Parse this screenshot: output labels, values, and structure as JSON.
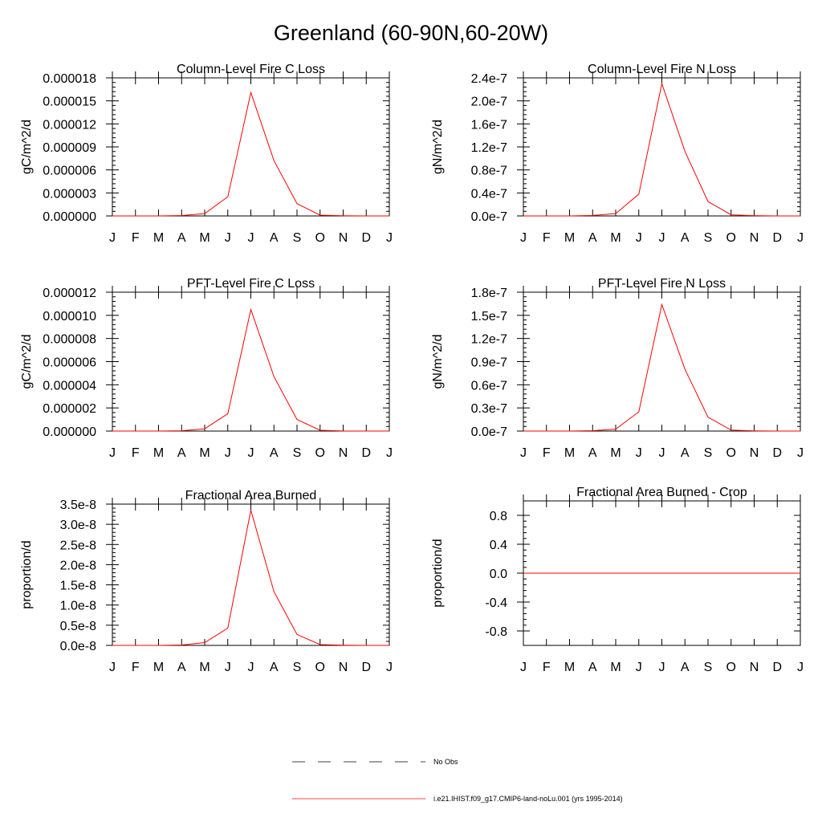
{
  "page_title": "Greenland (60-90N,60-20W)",
  "months": [
    "J",
    "F",
    "M",
    "A",
    "M",
    "J",
    "J",
    "A",
    "S",
    "O",
    "N",
    "D",
    "J"
  ],
  "legend": {
    "items": [
      {
        "label": "No Obs",
        "color": "#000000",
        "style": "dashed"
      },
      {
        "label": "i.e21.IHIST.f09_g17.CMIP6-land-noLu.001 (yrs 1995-2014)",
        "color": "#ff0000",
        "style": "solid"
      }
    ]
  },
  "chart_data": [
    {
      "type": "line",
      "title": "Column-Level Fire C Loss",
      "ylabel": "gC/m^2/d",
      "ylim": [
        0,
        1.8e-05
      ],
      "yticks": [
        0,
        3e-06,
        6e-06,
        9e-06,
        1.2e-05,
        1.5e-05,
        1.8e-05
      ],
      "ytick_labels": [
        "0.000000",
        "0.000003",
        "0.000006",
        "0.000009",
        "0.000012",
        "0.000015",
        "0.000018"
      ],
      "series": [
        {
          "color": "#ff0000",
          "values": [
            0,
            0,
            0,
            5e-08,
            3e-07,
            2.5e-06,
            1.61e-05,
            7.2e-06,
            1.6e-06,
            1e-07,
            2e-08,
            0,
            0
          ]
        }
      ]
    },
    {
      "type": "line",
      "title": "Column-Level Fire N Loss",
      "ylabel": "gN/m^2/d",
      "ylim": [
        0,
        2.4e-07
      ],
      "yticks": [
        0,
        4e-08,
        8e-08,
        1.2e-07,
        1.6e-07,
        2e-07,
        2.4e-07
      ],
      "ytick_labels": [
        "0.0e-7",
        "0.4e-7",
        "0.8e-7",
        "1.2e-7",
        "1.6e-7",
        "2.0e-7",
        "2.4e-7"
      ],
      "series": [
        {
          "color": "#ff0000",
          "values": [
            0,
            0,
            0,
            8e-10,
            4e-09,
            3.8e-08,
            2.3e-07,
            1.12e-07,
            2.5e-08,
            2e-09,
            5e-10,
            0,
            0
          ]
        }
      ]
    },
    {
      "type": "line",
      "title": "PFT-Level Fire C Loss",
      "ylabel": "gC/m^2/d",
      "ylim": [
        0,
        1.2e-05
      ],
      "yticks": [
        0,
        2e-06,
        4e-06,
        6e-06,
        8e-06,
        1e-05,
        1.2e-05
      ],
      "ytick_labels": [
        "0.000000",
        "0.000002",
        "0.000004",
        "0.000006",
        "0.000008",
        "0.000010",
        "0.000012"
      ],
      "series": [
        {
          "color": "#ff0000",
          "values": [
            0,
            0,
            0,
            3e-08,
            2e-07,
            1.5e-06,
            1.05e-05,
            4.7e-06,
            1e-06,
            7e-08,
            1e-08,
            0,
            0
          ]
        }
      ]
    },
    {
      "type": "line",
      "title": "PFT-Level Fire N Loss",
      "ylabel": "gN/m^2/d",
      "ylim": [
        0,
        1.8e-07
      ],
      "yticks": [
        0,
        3e-08,
        6e-08,
        9e-08,
        1.2e-07,
        1.5e-07,
        1.8e-07
      ],
      "ytick_labels": [
        "0.0e-7",
        "0.3e-7",
        "0.6e-7",
        "0.9e-7",
        "1.2e-7",
        "1.5e-7",
        "1.8e-7"
      ],
      "series": [
        {
          "color": "#ff0000",
          "values": [
            0,
            0,
            0,
            5e-10,
            2.5e-09,
            2.5e-08,
            1.64e-07,
            8e-08,
            1.8e-08,
            1.2e-09,
            3e-10,
            0,
            0
          ]
        }
      ]
    },
    {
      "type": "line",
      "title": "Fractional Area Burned",
      "ylabel": "proportion/d",
      "ylim": [
        0,
        3.5e-08
      ],
      "yticks": [
        0,
        5e-09,
        1e-08,
        1.5e-08,
        2e-08,
        2.5e-08,
        3e-08,
        3.5e-08
      ],
      "ytick_labels": [
        "0.0e-8",
        "0.5e-8",
        "1.0e-8",
        "1.5e-8",
        "2.0e-8",
        "2.5e-8",
        "3.0e-8",
        "3.5e-8"
      ],
      "series": [
        {
          "color": "#ff0000",
          "values": [
            0,
            0,
            0,
            1e-10,
            7e-10,
            4.3e-09,
            3.35e-08,
            1.33e-08,
            2.7e-09,
            2e-10,
            5e-11,
            0,
            0
          ]
        }
      ]
    },
    {
      "type": "line",
      "title": "Fractional Area Burned - Crop",
      "ylabel": "proportion/d",
      "ylim": [
        -1,
        1
      ],
      "yticks": [
        -0.8,
        -0.4,
        0,
        0.4,
        0.8
      ],
      "ytick_labels": [
        "-0.8",
        "-0.4",
        "0.0",
        "0.4",
        "0.8"
      ],
      "series": [
        {
          "color": "#ff0000",
          "values": [
            0,
            0,
            0,
            0,
            0,
            0,
            0,
            0,
            0,
            0,
            0,
            0,
            0
          ]
        }
      ]
    }
  ]
}
